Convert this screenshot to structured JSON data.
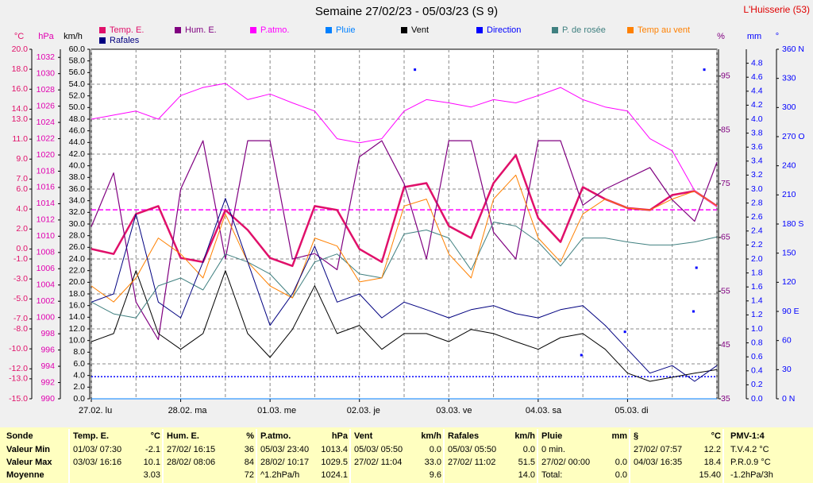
{
  "chart_data": {
    "type": "line",
    "title": "Semaine 27/02/23 - 05/03/23 (S 9)",
    "station": "L'Huisserie (53)",
    "xlim": [
      0,
      168
    ],
    "xticks": [
      {
        "value": 0,
        "label": "27.02.  lu"
      },
      {
        "value": 24,
        "label": "28.02.  ma"
      },
      {
        "value": 48,
        "label": "01.03.  me"
      },
      {
        "value": 72,
        "label": "02.03.  je"
      },
      {
        "value": 96,
        "label": "03.03.  ve"
      },
      {
        "value": 120,
        "label": "04.03.  sa"
      },
      {
        "value": 144,
        "label": "05.03.  di"
      }
    ],
    "xgrid": [
      0,
      12,
      24,
      36,
      48,
      60,
      72,
      84,
      96,
      108,
      120,
      132,
      144,
      156,
      168
    ],
    "axes": {
      "temp": {
        "unit": "°C",
        "side": "left",
        "color": "#e0106a",
        "ylim": [
          -15,
          20
        ],
        "yticks": [
          {
            "value": 20,
            "label": "20.0"
          },
          {
            "value": 18,
            "label": "18.0"
          },
          {
            "value": 16,
            "label": "16.0"
          },
          {
            "value": 14,
            "label": "14.0"
          },
          {
            "value": 13,
            "label": "13.0"
          },
          {
            "value": 11,
            "label": "11.0"
          },
          {
            "value": 9,
            "label": "9.0"
          },
          {
            "value": 7,
            "label": "7.0"
          },
          {
            "value": 6,
            "label": "6.0"
          },
          {
            "value": 4,
            "label": "4.0"
          },
          {
            "value": 2,
            "label": "2.0"
          },
          {
            "value": 0,
            "label": "0.0"
          },
          {
            "value": -1,
            "label": "-1.0"
          },
          {
            "value": -3,
            "label": "-3.0"
          },
          {
            "value": -5,
            "label": "-5.0"
          },
          {
            "value": -7,
            "label": "-7.0"
          },
          {
            "value": -8,
            "label": "-8.0"
          },
          {
            "value": -10,
            "label": "-10.0"
          },
          {
            "value": -12,
            "label": "-12.0"
          },
          {
            "value": -13,
            "label": "-13.0"
          },
          {
            "value": -15,
            "label": "-15.0"
          }
        ]
      },
      "hpa": {
        "unit": "hPa",
        "side": "left",
        "color": "#e000b0",
        "ylim": [
          990,
          1033
        ],
        "yticks": [
          990,
          992,
          994,
          996,
          998,
          1000,
          1002,
          1004,
          1006,
          1008,
          1010,
          1012,
          1014,
          1016,
          1018,
          1020,
          1022,
          1024,
          1026,
          1028,
          1030,
          1032
        ]
      },
      "kmh": {
        "unit": "km/h",
        "side": "left",
        "color": "#000000",
        "ylim": [
          0,
          60
        ],
        "grid": true,
        "yticks": [
          {
            "value": 0,
            "label": "0.0"
          },
          {
            "value": 2,
            "label": "2.0"
          },
          {
            "value": 4,
            "label": "4.0"
          },
          {
            "value": 6,
            "label": "6.0"
          },
          {
            "value": 8,
            "label": "8.0"
          },
          {
            "value": 10,
            "label": "10.0"
          },
          {
            "value": 12,
            "label": "12.0"
          },
          {
            "value": 14,
            "label": "14.0"
          },
          {
            "value": 16,
            "label": "16.0"
          },
          {
            "value": 18,
            "label": "18.0"
          },
          {
            "value": 20,
            "label": "20.0"
          },
          {
            "value": 22,
            "label": "22.0"
          },
          {
            "value": 24,
            "label": "24.0"
          },
          {
            "value": 26,
            "label": "26.0"
          },
          {
            "value": 28,
            "label": "28.0"
          },
          {
            "value": 30,
            "label": "30.0"
          },
          {
            "value": 32,
            "label": "32.0"
          },
          {
            "value": 34,
            "label": "34.0"
          },
          {
            "value": 36,
            "label": "36.0"
          },
          {
            "value": 38,
            "label": "38.0"
          },
          {
            "value": 40,
            "label": "40.0"
          },
          {
            "value": 42,
            "label": "42.0"
          },
          {
            "value": 44,
            "label": "44.0"
          },
          {
            "value": 46,
            "label": "46.0"
          },
          {
            "value": 48,
            "label": "48.0"
          },
          {
            "value": 50,
            "label": "50.0"
          },
          {
            "value": 52,
            "label": "52.0"
          },
          {
            "value": 54,
            "label": "54.0"
          },
          {
            "value": 56,
            "label": "56.0"
          },
          {
            "value": 58,
            "label": "58.0"
          },
          {
            "value": 60,
            "label": "60.0"
          }
        ]
      },
      "pct": {
        "unit": "%",
        "side": "right",
        "color": "#800080",
        "ylim": [
          35,
          100
        ],
        "yticks": [
          35,
          45,
          55,
          65,
          75,
          85,
          95
        ]
      },
      "mm": {
        "unit": "mm",
        "side": "right",
        "color": "#0000ff",
        "ylim": [
          0,
          5
        ],
        "yticks": [
          {
            "value": 0,
            "label": "0.0"
          },
          {
            "value": 0.2,
            "label": "0.2"
          },
          {
            "value": 0.4,
            "label": "0.4"
          },
          {
            "value": 0.6,
            "label": "0.6"
          },
          {
            "value": 0.8,
            "label": "0.8"
          },
          {
            "value": 1,
            "label": "1.0"
          },
          {
            "value": 1.2,
            "label": "1.2"
          },
          {
            "value": 1.4,
            "label": "1.4"
          },
          {
            "value": 1.6,
            "label": "1.6"
          },
          {
            "value": 1.8,
            "label": "1.8"
          },
          {
            "value": 2,
            "label": "2.0"
          },
          {
            "value": 2.2,
            "label": "2.2"
          },
          {
            "value": 2.4,
            "label": "2.4"
          },
          {
            "value": 2.6,
            "label": "2.6"
          },
          {
            "value": 2.8,
            "label": "2.8"
          },
          {
            "value": 3,
            "label": "3.0"
          },
          {
            "value": 3.2,
            "label": "3.2"
          },
          {
            "value": 3.4,
            "label": "3.4"
          },
          {
            "value": 3.6,
            "label": "3.6"
          },
          {
            "value": 3.8,
            "label": "3.8"
          },
          {
            "value": 4,
            "label": "4.0"
          },
          {
            "value": 4.2,
            "label": "4.2"
          },
          {
            "value": 4.4,
            "label": "4.4"
          },
          {
            "value": 4.6,
            "label": "4.6"
          },
          {
            "value": 4.8,
            "label": "4.8"
          }
        ]
      },
      "deg": {
        "unit": "°",
        "side": "right",
        "color": "#0000ff",
        "ylim": [
          0,
          360
        ],
        "yticks": [
          {
            "value": 0,
            "label": "0   N"
          },
          30,
          60,
          {
            "value": 90,
            "label": "90  E"
          },
          120,
          150,
          {
            "value": 180,
            "label": "180 S"
          },
          210,
          240,
          {
            "value": 270,
            "label": "270 O"
          },
          300,
          330,
          {
            "value": 360,
            "label": "360 N"
          }
        ]
      }
    },
    "references": [
      {
        "axis": "hpa",
        "value": 1013.25,
        "color": "#ff00ff",
        "dash": "6 3"
      },
      {
        "axis": "kmh",
        "value": 3.8,
        "color": "#0000ff",
        "dash": "2 2"
      }
    ],
    "x": [
      0,
      6,
      12,
      18,
      24,
      30,
      36,
      42,
      48,
      54,
      60,
      66,
      72,
      78,
      84,
      90,
      96,
      102,
      108,
      114,
      120,
      126,
      132,
      138,
      144,
      150,
      156,
      162,
      168
    ],
    "series": [
      {
        "name": "Temp. E.",
        "color": "#e0106a",
        "axis": "temp",
        "width": 2.5,
        "values": [
          0.0,
          -0.5,
          3.5,
          4.3,
          -0.9,
          -1.3,
          3.9,
          1.9,
          -0.9,
          -1.7,
          4.3,
          3.9,
          0.0,
          -1.3,
          6.2,
          6.6,
          2.3,
          1.1,
          6.6,
          9.4,
          3.1,
          0.7,
          6.2,
          5.0,
          4.1,
          3.9,
          5.4,
          5.8,
          4.3
        ]
      },
      {
        "name": "Hum. E.",
        "color": "#800080",
        "axis": "pct",
        "width": 1.2,
        "values": [
          67,
          77,
          53,
          46,
          74,
          83,
          61,
          83,
          83,
          61,
          62,
          59,
          80,
          83,
          75,
          61,
          83,
          83,
          66,
          61,
          83,
          83,
          71,
          74,
          76,
          78,
          72,
          68,
          79
        ]
      },
      {
        "name": "P.atmo.",
        "color": "#ff00ff",
        "axis": "hpa",
        "width": 1,
        "values": [
          1024.4,
          1024.9,
          1025.4,
          1024.4,
          1027.3,
          1028.3,
          1028.8,
          1026.8,
          1027.5,
          1026.4,
          1025.4,
          1022.0,
          1021.5,
          1022.0,
          1025.4,
          1026.8,
          1026.4,
          1025.9,
          1026.8,
          1026.4,
          1027.3,
          1028.3,
          1026.8,
          1025.9,
          1025.4,
          1022.0,
          1020.5,
          1015.6,
          1013.6
        ]
      },
      {
        "name": "Pluie",
        "color": "#0080ff",
        "axis": "mm",
        "width": 1,
        "values": [
          0,
          0,
          0,
          0,
          0,
          0,
          0,
          0,
          0,
          0,
          0,
          0,
          0,
          0,
          0,
          0,
          0,
          0,
          0,
          0,
          0,
          0,
          0,
          0,
          0,
          0,
          0,
          0,
          0
        ]
      },
      {
        "name": "Vent",
        "color": "#000000",
        "axis": "kmh",
        "width": 1,
        "values": [
          9.8,
          11.2,
          22.0,
          11.2,
          8.5,
          11.2,
          22.0,
          11.2,
          7.1,
          11.9,
          19.4,
          11.2,
          12.6,
          8.5,
          11.2,
          11.2,
          9.8,
          11.9,
          11.2,
          9.8,
          8.5,
          10.5,
          11.2,
          8.5,
          4.4,
          3.0,
          3.7,
          4.4,
          5.0
        ]
      },
      {
        "name": "Direction",
        "color": "#0000ff",
        "axis": "deg",
        "type": "scatter",
        "x": [
          86.9,
          131.6,
          143.3,
          161.7,
          162.5,
          164.6
        ],
        "values": [
          339,
          45,
          69,
          90,
          135,
          339
        ]
      },
      {
        "name": "P. de rosée",
        "color": "#408080",
        "axis": "temp",
        "width": 1,
        "values": [
          -5.3,
          -6.5,
          -6.9,
          -3.7,
          -2.9,
          -4.1,
          -0.5,
          -1.3,
          -2.5,
          -4.9,
          -1.3,
          -0.5,
          -2.5,
          -2.9,
          1.5,
          1.9,
          1.1,
          -2.1,
          2.7,
          2.3,
          0.7,
          -1.7,
          1.1,
          1.1,
          0.7,
          0.4,
          0.4,
          0.7,
          1.2
        ]
      },
      {
        "name": "Temp au vent",
        "color": "#ff8000",
        "axis": "temp",
        "width": 1,
        "values": [
          -3.7,
          -5.3,
          -2.9,
          1.1,
          -0.5,
          -2.9,
          3.5,
          -1.3,
          -3.7,
          -4.9,
          1.1,
          0.3,
          -3.3,
          -2.9,
          4.3,
          5.0,
          -0.5,
          -2.9,
          5.0,
          7.4,
          1.1,
          -1.3,
          3.5,
          5.0,
          4.1,
          3.9,
          5.0,
          5.8,
          4.3
        ]
      },
      {
        "name": "Rafales",
        "color": "#000080",
        "axis": "kmh",
        "width": 1,
        "values": [
          16.6,
          18.0,
          31.7,
          16.6,
          13.9,
          23.5,
          34.4,
          23.5,
          12.6,
          18.0,
          26.2,
          16.6,
          18.0,
          13.9,
          16.6,
          15.3,
          13.9,
          15.3,
          16.0,
          14.6,
          13.9,
          15.3,
          16.0,
          12.6,
          8.5,
          4.4,
          5.7,
          3.0,
          5.7
        ]
      }
    ]
  },
  "summary": {
    "row_labels": [
      "Sonde",
      "Valeur Min",
      "Valeur Max",
      "Moyenne"
    ],
    "columns": [
      {
        "title": "Temp. E.",
        "unit": "°C",
        "rows": [
          {
            "label": "01/03/ 07:30",
            "value": "-2.1"
          },
          {
            "label": "03/03/ 16:16",
            "value": "10.1"
          },
          {
            "value": "3.03"
          }
        ]
      },
      {
        "title": "Hum. E.",
        "unit": "%",
        "rows": [
          {
            "label": "27/02/ 16:15",
            "value": "36"
          },
          {
            "label": "28/02/ 08:06",
            "value": "84"
          },
          {
            "value": "72"
          }
        ]
      },
      {
        "title": "P.atmo.",
        "unit": "hPa",
        "rows": [
          {
            "label": "05/03/ 23:40",
            "value": "1013.4"
          },
          {
            "label": "28/02/ 10:17",
            "value": "1029.5"
          },
          {
            "label": "^1.2hPa/h",
            "value": "1024.1"
          }
        ]
      },
      {
        "title": "Vent",
        "unit": "km/h",
        "rows": [
          {
            "label": "05/03/ 05:50",
            "value": "0.0"
          },
          {
            "label": "27/02/ 11:04",
            "value": "33.0"
          },
          {
            "value": "9.6"
          }
        ]
      },
      {
        "title": "Rafales",
        "unit": "km/h",
        "rows": [
          {
            "label": "05/03/ 05:50",
            "value": "0.0"
          },
          {
            "label": "27/02/ 11:02",
            "value": "51.5"
          },
          {
            "value": "14.0"
          }
        ]
      },
      {
        "title": "Pluie",
        "unit": "mm",
        "rows": [
          {
            "label": "0 min."
          },
          {
            "label": "27/02/  00:00",
            "value": "0.0"
          },
          {
            "label": "Total:",
            "value": "0.0"
          }
        ]
      },
      {
        "title": "§",
        "unit": "°C",
        "rows": [
          {
            "label": "27/02/  07:57",
            "value": "12.2"
          },
          {
            "label": "04/03/  16:35",
            "value": "18.4"
          },
          {
            "value": "15.40"
          }
        ]
      }
    ],
    "pmv": {
      "title": "PMV-1:4",
      "rows": [
        "T.V.4.2 °C",
        "P.R.0.9 °C",
        "-1.2hPa/3h"
      ]
    }
  }
}
